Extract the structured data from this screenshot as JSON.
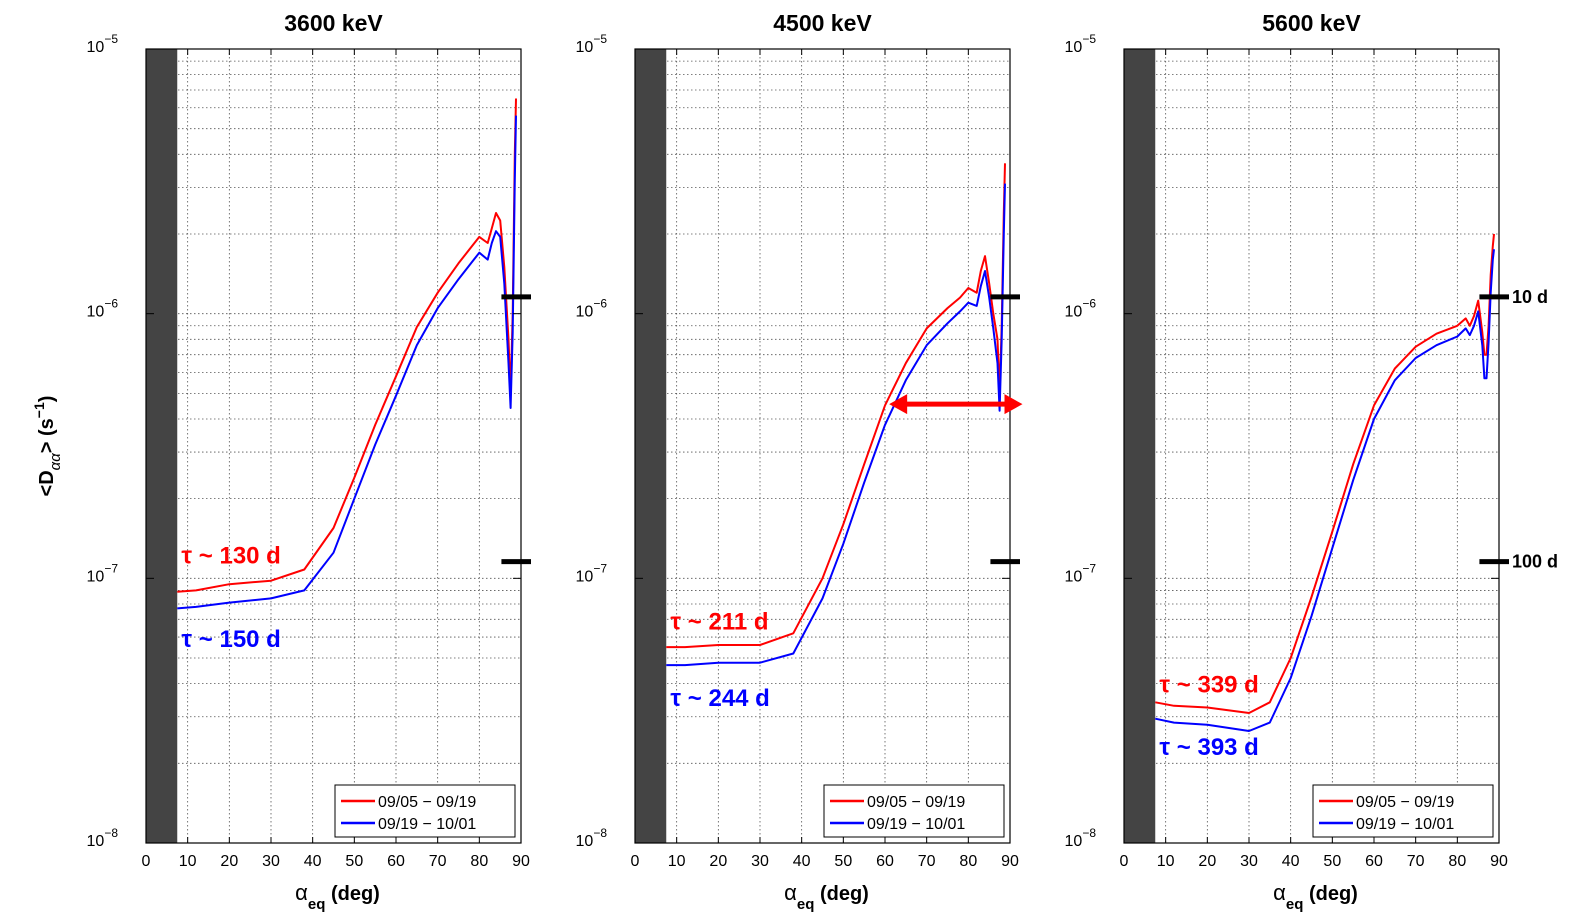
{
  "figure": {
    "background": "#ffffff",
    "series_colors": {
      "first": "#ff0000",
      "second": "#0000ff"
    },
    "gray_band_color": "#444444",
    "xlabel": "α",
    "xlabel_sub": "eq",
    "xlabel_unit": "(deg)",
    "ylabel_main": "<D",
    "ylabel_sub": "αα",
    "ylabel_end": "> (s",
    "ylabel_exp": "−1",
    "ylabel_close": ")",
    "y_tick_base": "10",
    "legend": [
      "09/05 − 09/19",
      "09/19 − 10/01"
    ],
    "reference_lines": [
      {
        "y": 1.157e-06,
        "label": "10 d"
      },
      {
        "y": 1.157e-07,
        "label": "100 d"
      }
    ],
    "highlight_arrow": {
      "panel": 1,
      "x_from": 61,
      "x_to": 93,
      "y": 4.55e-07,
      "color": "#ff0000"
    }
  },
  "chart_data": [
    {
      "type": "line",
      "title": "3600 keV",
      "xlim": [
        0,
        90
      ],
      "ylim": [
        1e-08,
        1e-05
      ],
      "yscale": "log",
      "grid": true,
      "legend_position": "bottom-right",
      "gray_band": [
        0,
        7.5
      ],
      "x_ticks": [
        0,
        10,
        20,
        30,
        40,
        50,
        60,
        70,
        80,
        90
      ],
      "y_ticks": [
        {
          "value": 1e-08,
          "exp": "−8"
        },
        {
          "value": 1e-07,
          "exp": "−7"
        },
        {
          "value": 1e-06,
          "exp": "−6"
        },
        {
          "value": 1e-05,
          "exp": "−5"
        }
      ],
      "annotations": [
        {
          "text": "τ ~ 130 d",
          "series": 0,
          "x": 8.5,
          "y": 1.14e-07
        },
        {
          "text": "τ ~ 150 d",
          "series": 1,
          "x": 8.5,
          "y": 5.5e-08
        }
      ],
      "series": [
        {
          "name": "09/05 − 09/19",
          "color": "#ff0000",
          "x": [
            7.5,
            12,
            20,
            30,
            38,
            45,
            50,
            55,
            60,
            65,
            70,
            75,
            78,
            80,
            82,
            83,
            84,
            85,
            86,
            87,
            87.5,
            88,
            88.5,
            88.8
          ],
          "y": [
            8.9e-08,
            9e-08,
            9.5e-08,
            9.8e-08,
            1.08e-07,
            1.55e-07,
            2.4e-07,
            3.8e-07,
            5.8e-07,
            8.9e-07,
            1.2e-06,
            1.55e-06,
            1.78e-06,
            1.95e-06,
            1.85e-06,
            2.1e-06,
            2.4e-06,
            2.25e-06,
            1.5e-06,
            8e-07,
            5e-07,
            1e-06,
            4e-06,
            6.5e-06
          ]
        },
        {
          "name": "09/19 − 10/01",
          "color": "#0000ff",
          "x": [
            7.5,
            12,
            20,
            30,
            38,
            45,
            50,
            55,
            60,
            65,
            70,
            75,
            78,
            80,
            82,
            83,
            84,
            85,
            86,
            87,
            87.5,
            88,
            88.5,
            88.8
          ],
          "y": [
            7.7e-08,
            7.8e-08,
            8.1e-08,
            8.4e-08,
            9e-08,
            1.25e-07,
            2e-07,
            3.2e-07,
            4.9e-07,
            7.6e-07,
            1.05e-06,
            1.35e-06,
            1.55e-06,
            1.7e-06,
            1.6e-06,
            1.85e-06,
            2.05e-06,
            1.95e-06,
            1.3e-06,
            6.5e-07,
            4.4e-07,
            8.5e-07,
            3.2e-06,
            5.6e-06
          ]
        }
      ]
    },
    {
      "type": "line",
      "title": "4500 keV",
      "xlim": [
        0,
        90
      ],
      "ylim": [
        1e-08,
        1e-05
      ],
      "yscale": "log",
      "grid": true,
      "legend_position": "bottom-right",
      "gray_band": [
        0,
        7.5
      ],
      "x_ticks": [
        0,
        10,
        20,
        30,
        40,
        50,
        60,
        70,
        80,
        90
      ],
      "y_ticks": [
        {
          "value": 1e-08,
          "exp": "−8"
        },
        {
          "value": 1e-07,
          "exp": "−7"
        },
        {
          "value": 1e-06,
          "exp": "−6"
        },
        {
          "value": 1e-05,
          "exp": "−5"
        }
      ],
      "annotations": [
        {
          "text": "τ ~ 211 d",
          "series": 0,
          "x": 8.5,
          "y": 6.4e-08
        },
        {
          "text": "τ ~ 244 d",
          "series": 1,
          "x": 8.5,
          "y": 3.3e-08
        }
      ],
      "series": [
        {
          "name": "09/05 − 09/19",
          "color": "#ff0000",
          "x": [
            7.5,
            12,
            20,
            30,
            38,
            45,
            50,
            55,
            60,
            65,
            70,
            75,
            78,
            80,
            82,
            83,
            84,
            85,
            86,
            87,
            87.5,
            88,
            88.5,
            88.8
          ],
          "y": [
            5.5e-08,
            5.5e-08,
            5.6e-08,
            5.6e-08,
            6.2e-08,
            1e-07,
            1.6e-07,
            2.7e-07,
            4.5e-07,
            6.5e-07,
            8.8e-07,
            1.05e-06,
            1.15e-06,
            1.25e-06,
            1.2e-06,
            1.45e-06,
            1.65e-06,
            1.3e-06,
            1e-06,
            8e-07,
            5e-07,
            9e-07,
            2.4e-06,
            3.7e-06
          ]
        },
        {
          "name": "09/19 − 10/01",
          "color": "#0000ff",
          "x": [
            7.5,
            12,
            20,
            30,
            38,
            45,
            50,
            55,
            60,
            65,
            70,
            75,
            78,
            80,
            82,
            83,
            84,
            85,
            86,
            87,
            87.5,
            88,
            88.5,
            88.8
          ],
          "y": [
            4.7e-08,
            4.7e-08,
            4.8e-08,
            4.8e-08,
            5.2e-08,
            8.4e-08,
            1.35e-07,
            2.3e-07,
            3.8e-07,
            5.6e-07,
            7.6e-07,
            9.2e-07,
            1.02e-06,
            1.1e-06,
            1.07e-06,
            1.27e-06,
            1.45e-06,
            1.15e-06,
            8.8e-07,
            6.5e-07,
            4.3e-07,
            8e-07,
            2e-06,
            3.1e-06
          ]
        }
      ]
    },
    {
      "type": "line",
      "title": "5600 keV",
      "xlim": [
        0,
        90
      ],
      "ylim": [
        1e-08,
        1e-05
      ],
      "yscale": "log",
      "grid": true,
      "legend_position": "bottom-right",
      "gray_band": [
        0,
        7.5
      ],
      "x_ticks": [
        0,
        10,
        20,
        30,
        40,
        50,
        60,
        70,
        80,
        90
      ],
      "y_ticks": [
        {
          "value": 1e-08,
          "exp": "−8"
        },
        {
          "value": 1e-07,
          "exp": "−7"
        },
        {
          "value": 1e-06,
          "exp": "−6"
        },
        {
          "value": 1e-05,
          "exp": "−5"
        }
      ],
      "annotations": [
        {
          "text": "τ ~ 339 d",
          "series": 0,
          "x": 8.5,
          "y": 3.7e-08
        },
        {
          "text": "τ ~ 393 d",
          "series": 1,
          "x": 8.5,
          "y": 2.15e-08
        }
      ],
      "series": [
        {
          "name": "09/05 − 09/19",
          "color": "#ff0000",
          "x": [
            7.5,
            12,
            20,
            30,
            35,
            40,
            45,
            50,
            55,
            60,
            65,
            70,
            75,
            80,
            82,
            83,
            84,
            85,
            86,
            86.5,
            87,
            87.5,
            88,
            88.5,
            88.8
          ],
          "y": [
            3.4e-08,
            3.3e-08,
            3.25e-08,
            3.1e-08,
            3.4e-08,
            5e-08,
            8.5e-08,
            1.5e-07,
            2.7e-07,
            4.5e-07,
            6.2e-07,
            7.5e-07,
            8.4e-07,
            9e-07,
            9.6e-07,
            9e-07,
            9.8e-07,
            1.12e-06,
            8.5e-07,
            7e-07,
            7e-07,
            9e-07,
            1.4e-06,
            1.8e-06,
            2e-06
          ]
        },
        {
          "name": "09/19 − 10/01",
          "color": "#0000ff",
          "x": [
            7.5,
            12,
            20,
            30,
            35,
            40,
            45,
            50,
            55,
            60,
            65,
            70,
            75,
            80,
            82,
            83,
            84,
            85,
            86,
            86.5,
            87,
            87.5,
            88,
            88.5,
            88.8
          ],
          "y": [
            2.95e-08,
            2.85e-08,
            2.8e-08,
            2.65e-08,
            2.85e-08,
            4.2e-08,
            7.2e-08,
            1.3e-07,
            2.35e-07,
            4e-07,
            5.6e-07,
            6.8e-07,
            7.6e-07,
            8.2e-07,
            8.8e-07,
            8.3e-07,
            9e-07,
            1.02e-06,
            7.6e-07,
            5.7e-07,
            5.7e-07,
            7.8e-07,
            1.2e-06,
            1.6e-06,
            1.75e-06
          ]
        }
      ]
    }
  ]
}
